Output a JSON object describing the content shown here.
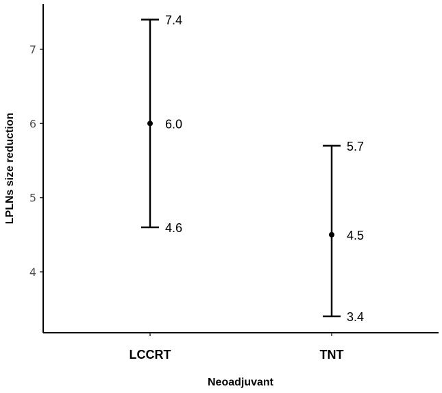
{
  "chart_data": {
    "type": "errorbar",
    "categories": [
      "LCCRT",
      "TNT"
    ],
    "series": [
      {
        "points": [
          {
            "category": "LCCRT",
            "mean": 6.0,
            "lower": 4.6,
            "upper": 7.4,
            "labels": {
              "mean": "6.0",
              "lower": "4.6",
              "upper": "7.4"
            }
          },
          {
            "category": "TNT",
            "mean": 4.5,
            "lower": 3.4,
            "upper": 5.7,
            "labels": {
              "mean": "4.5",
              "lower": "3.4",
              "upper": "5.7"
            }
          }
        ]
      }
    ],
    "xlabel": "Neoadjuvant",
    "ylabel": "LPLNs size reduction",
    "yticks": [
      4,
      5,
      6,
      7
    ],
    "ylim": [
      3.2,
      7.9
    ],
    "grid": false
  }
}
